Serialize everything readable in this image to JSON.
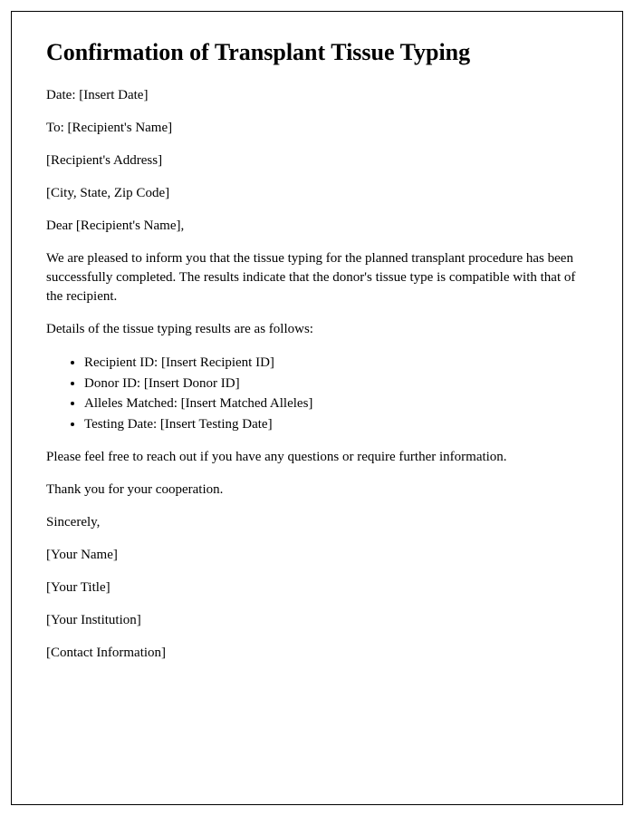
{
  "title": "Confirmation of Transplant Tissue Typing",
  "header": {
    "date_label": "Date: ",
    "date_value": "[Insert Date]",
    "to_label": "To: ",
    "to_value": "[Recipient's Name]",
    "address": "[Recipient's Address]",
    "city_state_zip": "[City, State, Zip Code]"
  },
  "salutation": "Dear [Recipient's Name],",
  "body": {
    "paragraph1": "We are pleased to inform you that the tissue typing for the planned transplant procedure has been successfully completed. The results indicate that the donor's tissue type is compatible with that of the recipient.",
    "paragraph2": "Details of the tissue typing results are as follows:",
    "details": [
      "Recipient ID: [Insert Recipient ID]",
      "Donor ID: [Insert Donor ID]",
      "Alleles Matched: [Insert Matched Alleles]",
      "Testing Date: [Insert Testing Date]"
    ],
    "paragraph3": "Please feel free to reach out if you have any questions or require further information.",
    "paragraph4": "Thank you for your cooperation."
  },
  "closing": {
    "sincerely": "Sincerely,",
    "name": "[Your Name]",
    "title": "[Your Title]",
    "institution": "[Your Institution]",
    "contact": "[Contact Information]"
  },
  "styling": {
    "font_family": "Times New Roman",
    "title_fontsize": 26,
    "body_fontsize": 15,
    "border_color": "#000000",
    "text_color": "#000000",
    "background_color": "#ffffff"
  }
}
